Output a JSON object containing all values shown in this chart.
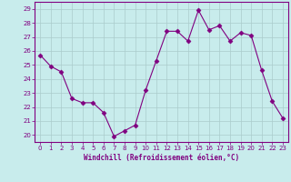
{
  "x": [
    0,
    1,
    2,
    3,
    4,
    5,
    6,
    7,
    8,
    9,
    10,
    11,
    12,
    13,
    14,
    15,
    16,
    17,
    18,
    19,
    20,
    21,
    22,
    23
  ],
  "y": [
    25.7,
    24.9,
    24.5,
    22.6,
    22.3,
    22.3,
    21.6,
    19.9,
    20.3,
    20.7,
    23.2,
    25.3,
    27.4,
    27.4,
    26.7,
    28.9,
    27.5,
    27.8,
    26.7,
    27.3,
    27.1,
    24.6,
    22.4,
    21.2
  ],
  "line_color": "#800080",
  "marker": "D",
  "marker_size": 2.5,
  "bg_color": "#c8ecec",
  "grid_color": "#aacccc",
  "xlabel": "Windchill (Refroidissement éolien,°C)",
  "xlabel_color": "#800080",
  "tick_color": "#800080",
  "spine_color": "#800080",
  "ylim": [
    19.5,
    29.5
  ],
  "yticks": [
    20,
    21,
    22,
    23,
    24,
    25,
    26,
    27,
    28,
    29
  ],
  "xlim": [
    -0.5,
    23.5
  ],
  "xticks": [
    0,
    1,
    2,
    3,
    4,
    5,
    6,
    7,
    8,
    9,
    10,
    11,
    12,
    13,
    14,
    15,
    16,
    17,
    18,
    19,
    20,
    21,
    22,
    23
  ]
}
